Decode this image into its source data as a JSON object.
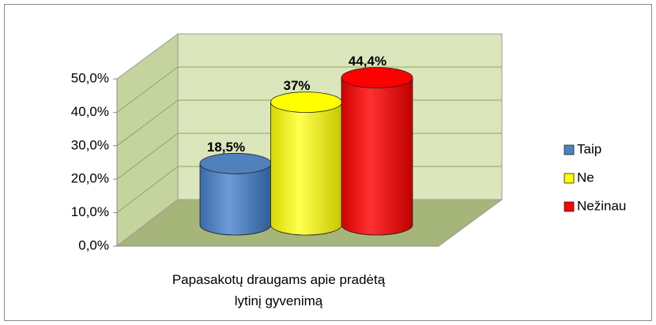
{
  "chart_data": {
    "type": "bar",
    "categories": [
      "Papasakotų draugams apie pradėtą lytinį gyvenimą"
    ],
    "series": [
      {
        "name": "Taip",
        "color": "#4f81bd",
        "values": [
          18.5
        ],
        "value_labels": [
          "18,5%"
        ]
      },
      {
        "name": "Ne",
        "color": "#ffff00",
        "values": [
          37
        ],
        "value_labels": [
          "37%"
        ]
      },
      {
        "name": "Nežinau",
        "color": "#ff0000",
        "values": [
          44.4
        ],
        "value_labels": [
          "44,4%"
        ]
      }
    ],
    "ylim": [
      0,
      50
    ],
    "yticks": [
      {
        "value": 0,
        "label": "0,0%"
      },
      {
        "value": 10,
        "label": "10,0%"
      },
      {
        "value": 20,
        "label": "20,0%"
      },
      {
        "value": 30,
        "label": "30,0%"
      },
      {
        "value": 40,
        "label": "40,0%"
      },
      {
        "value": 50,
        "label": "50,0%"
      }
    ],
    "grid": true,
    "legend": "right"
  }
}
